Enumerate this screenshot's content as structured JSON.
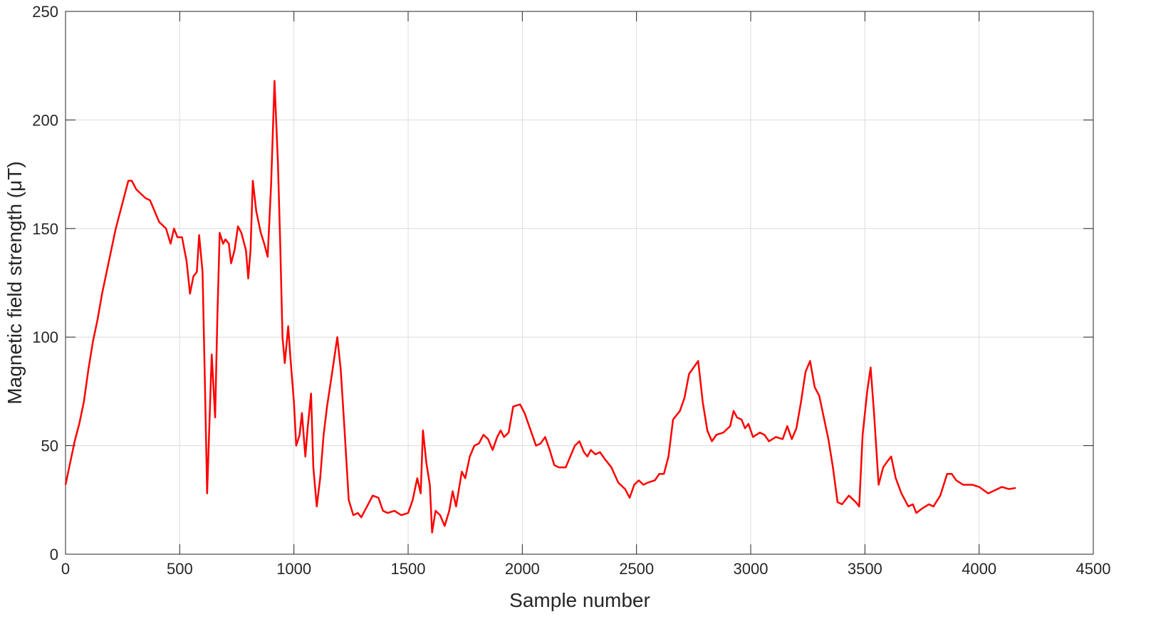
{
  "chart_data": {
    "type": "line",
    "x_label": "Sample number",
    "y_label": "Magnetic field strength (μT)",
    "xlim": [
      0,
      4500
    ],
    "xticks": [
      0,
      500,
      1000,
      1500,
      2000,
      2500,
      3000,
      3500,
      4000,
      4500
    ],
    "ylim": [
      0,
      250
    ],
    "yticks": [
      0,
      50,
      100,
      150,
      200,
      250
    ],
    "grid": true,
    "x": [
      0,
      20,
      40,
      60,
      80,
      100,
      120,
      140,
      160,
      180,
      200,
      220,
      240,
      260,
      275,
      290,
      310,
      330,
      350,
      370,
      390,
      410,
      440,
      460,
      475,
      490,
      510,
      530,
      545,
      560,
      575,
      585,
      600,
      610,
      620,
      630,
      640,
      655,
      665,
      675,
      690,
      700,
      715,
      725,
      740,
      755,
      770,
      790,
      800,
      810,
      820,
      835,
      855,
      870,
      885,
      900,
      915,
      930,
      940,
      950,
      960,
      975,
      985,
      1000,
      1010,
      1025,
      1035,
      1050,
      1060,
      1075,
      1085,
      1100,
      1115,
      1130,
      1145,
      1165,
      1190,
      1205,
      1220,
      1240,
      1260,
      1280,
      1295,
      1320,
      1345,
      1370,
      1390,
      1410,
      1440,
      1470,
      1500,
      1520,
      1540,
      1555,
      1565,
      1580,
      1595,
      1605,
      1620,
      1640,
      1660,
      1680,
      1695,
      1710,
      1735,
      1750,
      1770,
      1790,
      1810,
      1830,
      1850,
      1870,
      1890,
      1905,
      1920,
      1940,
      1960,
      1990,
      2010,
      2040,
      2060,
      2080,
      2100,
      2120,
      2140,
      2160,
      2190,
      2210,
      2230,
      2250,
      2270,
      2285,
      2300,
      2320,
      2340,
      2360,
      2390,
      2420,
      2450,
      2470,
      2490,
      2510,
      2530,
      2550,
      2580,
      2600,
      2620,
      2640,
      2660,
      2690,
      2710,
      2730,
      2750,
      2770,
      2790,
      2810,
      2830,
      2850,
      2880,
      2910,
      2925,
      2940,
      2960,
      2975,
      2990,
      3010,
      3040,
      3060,
      3080,
      3110,
      3140,
      3160,
      3180,
      3200,
      3220,
      3240,
      3260,
      3280,
      3300,
      3320,
      3340,
      3360,
      3380,
      3400,
      3430,
      3460,
      3475,
      3490,
      3510,
      3525,
      3540,
      3560,
      3580,
      3600,
      3615,
      3635,
      3660,
      3690,
      3710,
      3725,
      3750,
      3780,
      3800,
      3830,
      3860,
      3880,
      3900,
      3930,
      3970,
      4000,
      4040,
      4060,
      4080,
      4100,
      4130,
      4160
    ],
    "series": [
      {
        "color": "#ff0000",
        "values": [
          32,
          42,
          52,
          60,
          70,
          85,
          98,
          108,
          120,
          130,
          140,
          150,
          158,
          166,
          172,
          172,
          168,
          166,
          164,
          163,
          158,
          153,
          150,
          143,
          150,
          146,
          146,
          135,
          120,
          128,
          130,
          147,
          130,
          80,
          28,
          60,
          92,
          63,
          110,
          148,
          143,
          145,
          143,
          134,
          140,
          151,
          148,
          140,
          127,
          140,
          172,
          158,
          148,
          143,
          137,
          170,
          218,
          180,
          143,
          100,
          88,
          105,
          90,
          70,
          50,
          55,
          65,
          45,
          58,
          74,
          40,
          22,
          35,
          55,
          68,
          82,
          100,
          85,
          60,
          25,
          18,
          19,
          17,
          22,
          27,
          26,
          20,
          19,
          20,
          18,
          19,
          25,
          35,
          28,
          57,
          42,
          32,
          10,
          20,
          18,
          13,
          20,
          29,
          22,
          38,
          35,
          45,
          50,
          51,
          55,
          53,
          48,
          54,
          57,
          54,
          56,
          68,
          69,
          65,
          56,
          50,
          51,
          54,
          48,
          41,
          40,
          40,
          45,
          50,
          52,
          47,
          45,
          48,
          46,
          47,
          44,
          40,
          33,
          30,
          26,
          32,
          34,
          32,
          33,
          34,
          37,
          37,
          45,
          62,
          66,
          72,
          83,
          86,
          89,
          70,
          57,
          52,
          55,
          56,
          59,
          66,
          63,
          62,
          58,
          60,
          54,
          56,
          55,
          52,
          54,
          53,
          59,
          53,
          58,
          70,
          84,
          89,
          77,
          73,
          63,
          53,
          40,
          24,
          23,
          27,
          24,
          22,
          55,
          75,
          86,
          65,
          32,
          40,
          43,
          45,
          35,
          28,
          22,
          23,
          19,
          21,
          23,
          22,
          27,
          37,
          37,
          34,
          32,
          32,
          31,
          28,
          29,
          30,
          31,
          30,
          30.5
        ]
      }
    ]
  }
}
